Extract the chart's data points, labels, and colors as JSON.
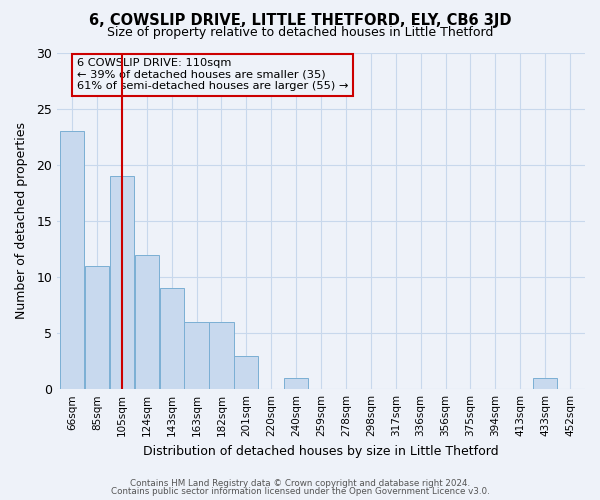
{
  "title": "6, COWSLIP DRIVE, LITTLE THETFORD, ELY, CB6 3JD",
  "subtitle": "Size of property relative to detached houses in Little Thetford",
  "xlabel": "Distribution of detached houses by size in Little Thetford",
  "ylabel": "Number of detached properties",
  "bar_color": "#c8d9ee",
  "bar_edge_color": "#7bafd4",
  "grid_color": "#c8d8ec",
  "bins": [
    "66sqm",
    "85sqm",
    "105sqm",
    "124sqm",
    "143sqm",
    "163sqm",
    "182sqm",
    "201sqm",
    "220sqm",
    "240sqm",
    "259sqm",
    "278sqm",
    "298sqm",
    "317sqm",
    "336sqm",
    "356sqm",
    "375sqm",
    "394sqm",
    "413sqm",
    "433sqm",
    "452sqm"
  ],
  "values": [
    23,
    11,
    19,
    12,
    9,
    6,
    6,
    3,
    0,
    1,
    0,
    0,
    0,
    0,
    0,
    0,
    0,
    0,
    0,
    1,
    0
  ],
  "ylim": [
    0,
    30
  ],
  "yticks": [
    0,
    5,
    10,
    15,
    20,
    25,
    30
  ],
  "property_line_x": 2,
  "property_line_color": "#cc0000",
  "annotation_text": "6 COWSLIP DRIVE: 110sqm\n← 39% of detached houses are smaller (35)\n61% of semi-detached houses are larger (55) →",
  "annotation_box_edge_color": "#cc0000",
  "footer_line1": "Contains HM Land Registry data © Crown copyright and database right 2024.",
  "footer_line2": "Contains public sector information licensed under the Open Government Licence v3.0.",
  "background_color": "#eef2f9"
}
